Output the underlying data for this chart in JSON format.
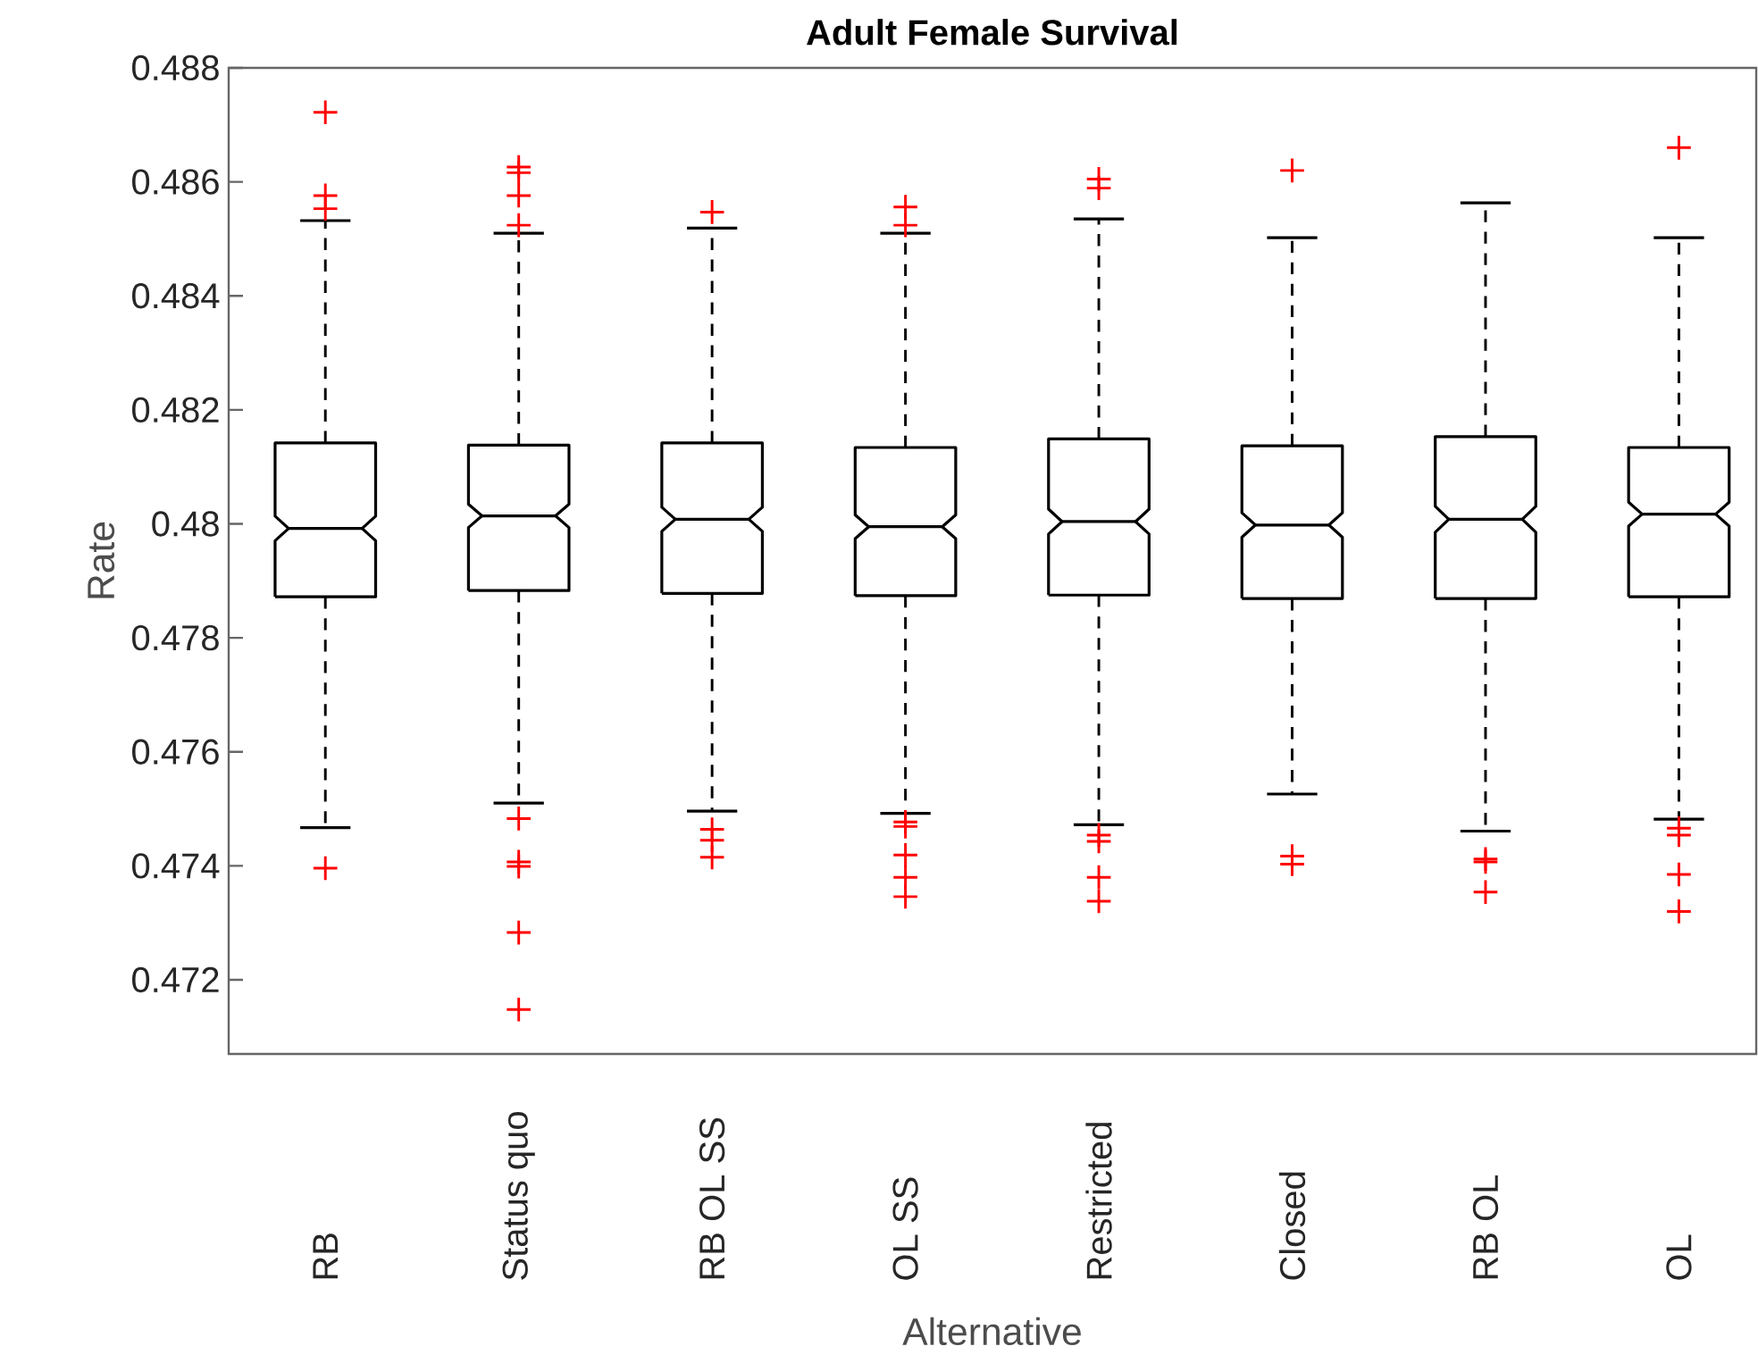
{
  "chart_data": {
    "type": "box",
    "title": "Adult Female Survival",
    "xlabel": "Alternative",
    "ylabel": "Rate",
    "categories": [
      "RB",
      "Status quo",
      "RB OL SS",
      "OL SS",
      "Restricted",
      "Closed",
      "RB OL",
      "OL"
    ],
    "boxes": [
      {
        "low": 0.47467,
        "q1": 0.47872,
        "median": 0.47992,
        "q3": 0.48142,
        "high": 0.48532,
        "outliers": [
          0.48722,
          0.48576,
          0.48553,
          0.47396
        ]
      },
      {
        "low": 0.4751,
        "q1": 0.47883,
        "median": 0.48014,
        "q3": 0.48138,
        "high": 0.4851,
        "outliers": [
          0.48626,
          0.48616,
          0.48576,
          0.48524,
          0.47483,
          0.47407,
          0.47399,
          0.47283,
          0.47148
        ]
      },
      {
        "low": 0.47496,
        "q1": 0.47878,
        "median": 0.48008,
        "q3": 0.48142,
        "high": 0.48519,
        "outliers": [
          0.48547,
          0.47464,
          0.47445,
          0.47415
        ]
      },
      {
        "low": 0.47492,
        "q1": 0.47874,
        "median": 0.47995,
        "q3": 0.48134,
        "high": 0.4851,
        "outliers": [
          0.48556,
          0.48524,
          0.47477,
          0.47469,
          0.47419,
          0.4738,
          0.47346
        ]
      },
      {
        "low": 0.47472,
        "q1": 0.47875,
        "median": 0.48004,
        "q3": 0.48149,
        "high": 0.48535,
        "outliers": [
          0.48605,
          0.48589,
          0.47454,
          0.47443,
          0.4738,
          0.47338
        ]
      },
      {
        "low": 0.47526,
        "q1": 0.47869,
        "median": 0.47998,
        "q3": 0.48137,
        "high": 0.48502,
        "outliers": [
          0.4862,
          0.47417,
          0.47403
        ]
      },
      {
        "low": 0.47461,
        "q1": 0.47869,
        "median": 0.48008,
        "q3": 0.48153,
        "high": 0.48563,
        "outliers": [
          0.47412,
          0.47407,
          0.47354
        ]
      },
      {
        "low": 0.47482,
        "q1": 0.47872,
        "median": 0.48017,
        "q3": 0.48134,
        "high": 0.48502,
        "outliers": [
          0.4866,
          0.47466,
          0.47454,
          0.47385,
          0.4732
        ]
      }
    ],
    "ylim": [
      0.4707,
      0.488
    ],
    "yticks": [
      0.472,
      0.474,
      0.476,
      0.478,
      0.48,
      0.482,
      0.484,
      0.486,
      0.488
    ]
  }
}
